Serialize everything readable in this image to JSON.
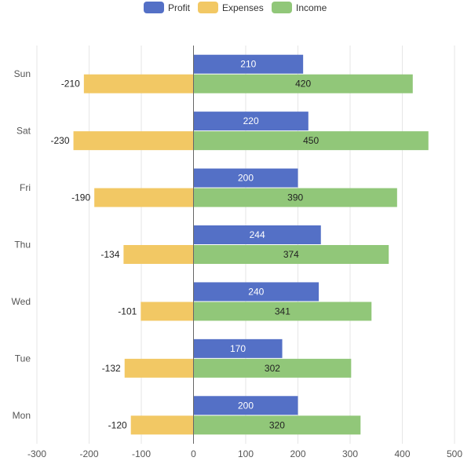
{
  "chart_data": {
    "type": "bar",
    "orientation": "horizontal",
    "categories": [
      "Sun",
      "Sat",
      "Fri",
      "Thu",
      "Wed",
      "Tue",
      "Mon"
    ],
    "series": [
      {
        "name": "Profit",
        "color": "#5470c6",
        "values": [
          210,
          220,
          200,
          244,
          240,
          170,
          200
        ],
        "label_color": "#ffffff",
        "stack": "profit"
      },
      {
        "name": "Expenses",
        "color": "#f2c864",
        "values": [
          -210,
          -230,
          -190,
          -134,
          -101,
          -132,
          -120
        ],
        "label_color": "#222222",
        "stack": "total"
      },
      {
        "name": "Income",
        "color": "#91c779",
        "values": [
          420,
          450,
          390,
          374,
          341,
          302,
          320
        ],
        "label_color": "#222222",
        "stack": "total"
      }
    ],
    "xlim": [
      -300,
      500
    ],
    "xticks": [
      "-300",
      "-200",
      "-100",
      "0",
      "100",
      "200",
      "300",
      "400",
      "500"
    ],
    "legend_position": "top-center",
    "grid": "vertical"
  }
}
